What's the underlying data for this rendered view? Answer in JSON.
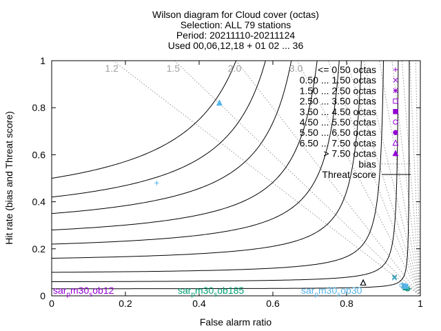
{
  "chart_data": {
    "type": "scatter",
    "title_lines": [
      "Wilson diagram  for Cloud cover (octas)",
      "Selection: ALL     79 stations",
      "Period: 20211110-20211124",
      "Used 00,06,12,18 + 01 02 ... 36"
    ],
    "xlabel": "False alarm ratio",
    "ylabel": "Hit rate (bias and Threat score)",
    "xlim": [
      0,
      1
    ],
    "ylim": [
      0,
      1
    ],
    "x_ticks": [
      0,
      0.2,
      0.4,
      0.6,
      0.8,
      1
    ],
    "x_tick_labels": [
      "0",
      "0.2",
      "0.4",
      "0.6",
      "0.8",
      "1"
    ],
    "y_ticks": [
      0,
      0.2,
      0.4,
      0.6,
      0.8,
      1
    ],
    "y_tick_labels": [
      "0",
      "0.2",
      "0.4",
      "0.6",
      "0.8",
      "1"
    ],
    "bias_labels": [
      {
        "bias": 1.2,
        "text": "1.2"
      },
      {
        "bias": 1.5,
        "text": "1.5"
      },
      {
        "bias": 2.0,
        "text": "2.0"
      },
      {
        "bias": 3.0,
        "text": "3.0"
      }
    ],
    "bias_values": [
      1.2,
      1.5,
      2.0,
      3.0,
      4.0,
      5.0,
      6.5,
      9.0,
      13.0,
      20.0,
      35.0,
      80.0
    ],
    "threat_score_values": [
      0.03,
      0.06,
      0.1,
      0.16,
      0.22,
      0.28,
      0.35,
      0.42,
      0.5
    ],
    "legend": {
      "position": "top-right",
      "entries": [
        {
          "label": "<= 0.50 octas",
          "marker": "plus"
        },
        {
          "label": "0.50 ... 1.50 octas",
          "marker": "cross"
        },
        {
          "label": "1.50 ... 2.50 octas",
          "marker": "star"
        },
        {
          "label": "2.50 ... 3.50 octas",
          "marker": "square-open"
        },
        {
          "label": "3.50 ... 4.50 octas",
          "marker": "square-filled"
        },
        {
          "label": "4.50 ... 5.50 octas",
          "marker": "circle-open"
        },
        {
          "label": "5.50 ... 6.50 octas",
          "marker": "circle-filled"
        },
        {
          "label": "6.50 ... 7.50 octas",
          "marker": "triangle-open"
        },
        {
          "label": "> 7.50 octas",
          "marker": "triangle-filled"
        }
      ],
      "line_entries": [
        {
          "label": "bias",
          "style": "dotted"
        },
        {
          "label": "Threat score",
          "style": "solid"
        }
      ]
    },
    "series": [
      {
        "name": "sar_pm30_sob12",
        "label_parts": [
          "sar",
          "p",
          "m30",
          "s",
          "ob12"
        ],
        "color": "#9400d3",
        "points": [
          {
            "x": 0.97,
            "y": 0.03,
            "marker": "plus"
          },
          {
            "x": 0.93,
            "y": 0.08,
            "marker": "cross"
          },
          {
            "x": 0.955,
            "y": 0.04,
            "marker": "star"
          },
          {
            "x": 0.96,
            "y": 0.035,
            "marker": "square-open"
          },
          {
            "x": 0.96,
            "y": 0.035,
            "marker": "square-filled"
          },
          {
            "x": 0.965,
            "y": 0.03,
            "marker": "circle-open"
          },
          {
            "x": 0.96,
            "y": 0.035,
            "marker": "circle-filled"
          },
          {
            "x": 0.845,
            "y": 0.055,
            "marker": "triangle-open"
          },
          {
            "x": 0.96,
            "y": 0.035,
            "marker": "triangle-filled"
          }
        ]
      },
      {
        "name": "sar_pm30_sob185",
        "label_parts": [
          "sar",
          "p",
          "m30",
          "s",
          "ob185"
        ],
        "color": "#009e73",
        "points": [
          {
            "x": 0.97,
            "y": 0.03,
            "marker": "plus"
          },
          {
            "x": 0.93,
            "y": 0.08,
            "marker": "cross"
          },
          {
            "x": 0.955,
            "y": 0.04,
            "marker": "star"
          },
          {
            "x": 0.96,
            "y": 0.035,
            "marker": "square-open"
          },
          {
            "x": 0.96,
            "y": 0.035,
            "marker": "square-filled"
          },
          {
            "x": 0.965,
            "y": 0.03,
            "marker": "circle-open"
          },
          {
            "x": 0.96,
            "y": 0.035,
            "marker": "circle-filled"
          },
          {
            "x": 0.845,
            "y": 0.055,
            "marker": "triangle-open"
          },
          {
            "x": 0.96,
            "y": 0.035,
            "marker": "triangle-filled"
          }
        ]
      },
      {
        "name": "sar_pm30_sob30",
        "label_parts": [
          "sar",
          "p",
          "m30",
          "s",
          "ob30"
        ],
        "color": "#56b4e9",
        "points": [
          {
            "x": 0.285,
            "y": 0.48,
            "marker": "plus"
          },
          {
            "x": 0.93,
            "y": 0.075,
            "marker": "cross"
          },
          {
            "x": 0.955,
            "y": 0.045,
            "marker": "star"
          },
          {
            "x": 0.96,
            "y": 0.04,
            "marker": "square-open"
          },
          {
            "x": 0.96,
            "y": 0.04,
            "marker": "square-filled"
          },
          {
            "x": 0.95,
            "y": 0.045,
            "marker": "circle-open"
          },
          {
            "x": 0.96,
            "y": 0.04,
            "marker": "circle-filled"
          },
          {
            "x": 0.845,
            "y": 0.055,
            "marker": "triangle-open"
          },
          {
            "x": 0.455,
            "y": 0.82,
            "marker": "triangle-filled"
          }
        ]
      }
    ]
  }
}
